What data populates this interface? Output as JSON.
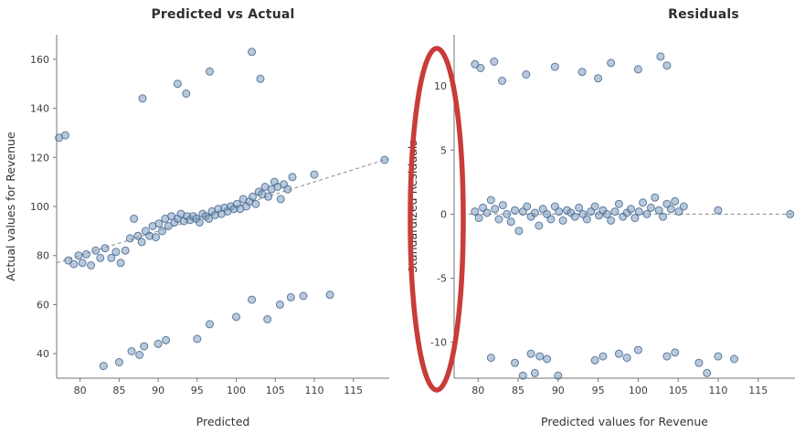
{
  "figure": {
    "background": "#ffffff"
  },
  "colors": {
    "point_fill": "#7d9cc0",
    "point_stroke": "#46688f",
    "axis": "#767676",
    "text": "#3d3d3d",
    "dashed_line": "#8a8a8a",
    "annotation_red": "#c83c3a"
  },
  "annotation": {
    "shape": "ellipse",
    "description": "red ellipse circling the Standardized Residuals y-axis area",
    "color": "#c83c3a"
  },
  "chart_data": [
    {
      "type": "scatter",
      "title": "Predicted vs Actual",
      "xlabel": "Predicted",
      "ylabel": "Actual values for Revenue",
      "xlim": [
        77,
        119.6
      ],
      "ylim": [
        30,
        170
      ],
      "xticks": [
        80,
        85,
        90,
        95,
        100,
        105,
        110,
        115
      ],
      "yticks": [
        40,
        60,
        80,
        100,
        120,
        140,
        160
      ],
      "grid": false,
      "legend": "none",
      "trend_line": {
        "x": [
          77,
          119.5
        ],
        "y": [
          77,
          119.5
        ],
        "style": "dashed"
      },
      "points": [
        [
          77.3,
          128
        ],
        [
          78.1,
          129
        ],
        [
          78.5,
          78
        ],
        [
          79.2,
          76.5
        ],
        [
          79.8,
          80
        ],
        [
          80.3,
          77
        ],
        [
          80.8,
          80.5
        ],
        [
          81.4,
          76
        ],
        [
          82,
          82
        ],
        [
          82.6,
          79
        ],
        [
          83.2,
          83
        ],
        [
          84,
          79
        ],
        [
          84.6,
          81.5
        ],
        [
          85.2,
          77
        ],
        [
          85.8,
          82
        ],
        [
          86.4,
          87
        ],
        [
          86.9,
          95
        ],
        [
          87.4,
          88
        ],
        [
          87.9,
          85.5
        ],
        [
          88.4,
          90
        ],
        [
          88.9,
          88
        ],
        [
          89.3,
          92
        ],
        [
          89.7,
          87.5
        ],
        [
          90.1,
          93
        ],
        [
          90.5,
          90
        ],
        [
          90.9,
          95
        ],
        [
          91.3,
          92
        ],
        [
          91.7,
          96
        ],
        [
          92.1,
          93.5
        ],
        [
          92.5,
          95
        ],
        [
          92.9,
          97
        ],
        [
          93.3,
          94
        ],
        [
          93.7,
          96
        ],
        [
          94.1,
          94.5
        ],
        [
          94.5,
          96
        ],
        [
          94.9,
          95
        ],
        [
          95.3,
          93.5
        ],
        [
          95.7,
          97
        ],
        [
          96.1,
          96
        ],
        [
          96.5,
          95
        ],
        [
          96.9,
          98
        ],
        [
          97.3,
          96.5
        ],
        [
          97.7,
          99
        ],
        [
          98.1,
          97
        ],
        [
          98.5,
          99.5
        ],
        [
          98.9,
          98
        ],
        [
          99.3,
          100
        ],
        [
          99.7,
          99
        ],
        [
          100.1,
          101
        ],
        [
          100.5,
          99
        ],
        [
          100.9,
          103
        ],
        [
          101.3,
          100
        ],
        [
          101.7,
          102
        ],
        [
          102.1,
          104
        ],
        [
          102.5,
          101
        ],
        [
          102.9,
          106
        ],
        [
          103.3,
          105
        ],
        [
          103.7,
          108
        ],
        [
          104.1,
          104
        ],
        [
          104.5,
          107
        ],
        [
          104.9,
          110
        ],
        [
          105.3,
          108
        ],
        [
          105.7,
          103
        ],
        [
          106.1,
          109
        ],
        [
          106.6,
          107
        ],
        [
          107.2,
          112
        ],
        [
          110,
          113
        ],
        [
          119,
          119
        ],
        [
          88,
          144
        ],
        [
          92.5,
          150
        ],
        [
          93.6,
          146
        ],
        [
          96.6,
          155
        ],
        [
          102,
          163
        ],
        [
          103.1,
          152
        ],
        [
          83,
          35
        ],
        [
          85,
          36.5
        ],
        [
          86.6,
          41
        ],
        [
          87.6,
          39.5
        ],
        [
          88.2,
          43
        ],
        [
          90,
          44
        ],
        [
          91,
          45.5
        ],
        [
          95,
          46
        ],
        [
          96.6,
          52
        ],
        [
          100,
          55
        ],
        [
          102,
          62
        ],
        [
          104,
          54
        ],
        [
          105.6,
          60
        ],
        [
          107,
          63
        ],
        [
          108.6,
          63.5
        ],
        [
          112,
          64
        ]
      ]
    },
    {
      "type": "scatter",
      "title": "Residuals",
      "xlabel": "Predicted values for Revenue",
      "ylabel": "Standardized Residuals",
      "xlim": [
        77,
        119.6
      ],
      "ylim": [
        -12.8,
        14
      ],
      "xticks": [
        80,
        85,
        90,
        95,
        100,
        105,
        110,
        115
      ],
      "yticks": [
        -10,
        -5,
        0,
        5,
        10
      ],
      "grid": false,
      "legend": "none",
      "zero_line": {
        "y": 0,
        "x_start": 78,
        "x_end": 119.5,
        "style": "dashed"
      },
      "points": [
        [
          79.6,
          0.2
        ],
        [
          80.1,
          -0.3
        ],
        [
          80.6,
          0.5
        ],
        [
          81.1,
          0.1
        ],
        [
          81.6,
          1.1
        ],
        [
          82.1,
          0.4
        ],
        [
          82.6,
          -0.4
        ],
        [
          83.1,
          0.7
        ],
        [
          83.6,
          0.0
        ],
        [
          84.1,
          -0.6
        ],
        [
          84.6,
          0.3
        ],
        [
          85.1,
          -1.3
        ],
        [
          85.6,
          0.2
        ],
        [
          86.1,
          0.6
        ],
        [
          86.6,
          -0.2
        ],
        [
          87.1,
          0.1
        ],
        [
          87.6,
          -0.9
        ],
        [
          88.1,
          0.4
        ],
        [
          88.6,
          0.0
        ],
        [
          89.1,
          -0.4
        ],
        [
          89.6,
          0.6
        ],
        [
          90.1,
          0.2
        ],
        [
          90.6,
          -0.5
        ],
        [
          91.1,
          0.3
        ],
        [
          91.6,
          0.1
        ],
        [
          92.1,
          -0.2
        ],
        [
          92.6,
          0.5
        ],
        [
          93.1,
          0.0
        ],
        [
          93.6,
          -0.4
        ],
        [
          94.1,
          0.2
        ],
        [
          94.6,
          0.6
        ],
        [
          95.1,
          -0.1
        ],
        [
          95.6,
          0.3
        ],
        [
          96.1,
          0.0
        ],
        [
          96.6,
          -0.5
        ],
        [
          97.1,
          0.2
        ],
        [
          97.6,
          0.8
        ],
        [
          98.1,
          -0.2
        ],
        [
          98.6,
          0.1
        ],
        [
          99.1,
          0.4
        ],
        [
          99.6,
          -0.3
        ],
        [
          100.1,
          0.2
        ],
        [
          100.6,
          0.9
        ],
        [
          101.1,
          0.0
        ],
        [
          101.6,
          0.5
        ],
        [
          102.1,
          1.3
        ],
        [
          102.6,
          0.3
        ],
        [
          103.1,
          -0.2
        ],
        [
          103.6,
          0.8
        ],
        [
          104.1,
          0.4
        ],
        [
          104.6,
          1.0
        ],
        [
          105.1,
          0.2
        ],
        [
          105.7,
          0.6
        ],
        [
          110,
          0.3
        ],
        [
          119,
          0.0
        ],
        [
          79.6,
          11.7
        ],
        [
          80.3,
          11.4
        ],
        [
          82,
          11.9
        ],
        [
          83,
          10.4
        ],
        [
          86,
          10.9
        ],
        [
          89.6,
          11.5
        ],
        [
          93,
          11.1
        ],
        [
          95,
          10.6
        ],
        [
          96.6,
          11.8
        ],
        [
          100,
          11.3
        ],
        [
          102.8,
          12.3
        ],
        [
          103.6,
          11.6
        ],
        [
          81.6,
          -11.2
        ],
        [
          84.6,
          -11.6
        ],
        [
          85.6,
          -12.6
        ],
        [
          86.6,
          -10.9
        ],
        [
          87.1,
          -12.4
        ],
        [
          87.7,
          -11.1
        ],
        [
          88.6,
          -11.3
        ],
        [
          90,
          -12.6
        ],
        [
          94.6,
          -11.4
        ],
        [
          95.6,
          -11.1
        ],
        [
          97.6,
          -10.9
        ],
        [
          98.6,
          -11.2
        ],
        [
          100,
          -10.6
        ],
        [
          103.6,
          -11.1
        ],
        [
          104.6,
          -10.8
        ],
        [
          107.6,
          -11.6
        ],
        [
          108.6,
          -12.4
        ],
        [
          110,
          -11.1
        ],
        [
          112,
          -11.3
        ]
      ]
    }
  ]
}
